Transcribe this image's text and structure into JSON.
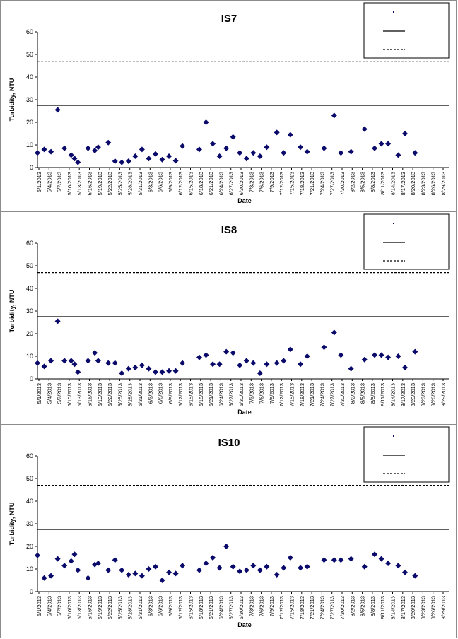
{
  "chart_data": [
    {
      "type": "scatter",
      "title": "IS7",
      "xlabel": "Date",
      "ylabel": "Turbidity, NTU",
      "ylim": [
        0,
        60
      ],
      "yticks": [
        0,
        10,
        20,
        30,
        40,
        50,
        60
      ],
      "xticks": [
        "5/1/2013",
        "5/4/2013",
        "5/7/2013",
        "5/10/2013",
        "5/13/2013",
        "5/16/2013",
        "5/19/2013",
        "5/22/2013",
        "5/25/2013",
        "5/28/2013",
        "5/31/2013",
        "6/3/2013",
        "6/6/2013",
        "6/9/2013",
        "6/12/2013",
        "6/15/2013",
        "6/18/2013",
        "6/21/2013",
        "6/24/2013",
        "6/27/2013",
        "6/30/2013",
        "7/3/2013",
        "7/6/2013",
        "7/9/2013",
        "7/12/2013",
        "7/15/2013",
        "7/18/2013",
        "7/21/2013",
        "7/24/2013",
        "7/27/2013",
        "7/30/2013",
        "8/2/2013",
        "8/5/2013",
        "8/8/2013",
        "8/11/2013",
        "8/14/2013",
        "8/17/2013",
        "8/20/2013",
        "8/23/2013",
        "8/26/2013",
        "8/29/2013"
      ],
      "xrange": [
        "2013-05-01",
        "2013-08-31"
      ],
      "legend_position": "top-right",
      "points": [
        [
          "2013-05-01",
          6.5
        ],
        [
          "2013-05-03",
          8
        ],
        [
          "2013-05-05",
          7
        ],
        [
          "2013-05-07",
          25.5
        ],
        [
          "2013-05-09",
          8.5
        ],
        [
          "2013-05-11",
          5.5
        ],
        [
          "2013-05-12",
          4
        ],
        [
          "2013-05-13",
          2.3
        ],
        [
          "2013-05-16",
          8.5
        ],
        [
          "2013-05-18",
          7.5
        ],
        [
          "2013-05-19",
          9
        ],
        [
          "2013-05-22",
          11
        ],
        [
          "2013-05-24",
          2.8
        ],
        [
          "2013-05-26",
          2.3
        ],
        [
          "2013-05-28",
          2.8
        ],
        [
          "2013-05-30",
          5
        ],
        [
          "2013-06-01",
          8
        ],
        [
          "2013-06-03",
          4
        ],
        [
          "2013-06-05",
          6
        ],
        [
          "2013-06-07",
          3.5
        ],
        [
          "2013-06-09",
          5
        ],
        [
          "2013-06-11",
          3
        ],
        [
          "2013-06-13",
          9.5
        ],
        [
          "2013-06-18",
          8
        ],
        [
          "2013-06-20",
          20
        ],
        [
          "2013-06-22",
          10.5
        ],
        [
          "2013-06-24",
          5
        ],
        [
          "2013-06-26",
          8.5
        ],
        [
          "2013-06-28",
          13.5
        ],
        [
          "2013-06-30",
          6.5
        ],
        [
          "2013-07-02",
          4
        ],
        [
          "2013-07-04",
          6.5
        ],
        [
          "2013-07-06",
          5
        ],
        [
          "2013-07-08",
          9
        ],
        [
          "2013-07-11",
          15.5
        ],
        [
          "2013-07-13",
          6.5
        ],
        [
          "2013-07-15",
          14.5
        ],
        [
          "2013-07-18",
          9
        ],
        [
          "2013-07-20",
          7
        ],
        [
          "2013-07-25",
          8.5
        ],
        [
          "2013-07-28",
          23
        ],
        [
          "2013-07-30",
          6.5
        ],
        [
          "2013-08-02",
          7
        ],
        [
          "2013-08-06",
          17
        ],
        [
          "2013-08-09",
          8.5
        ],
        [
          "2013-08-11",
          10.5
        ],
        [
          "2013-08-13",
          10.5
        ],
        [
          "2013-08-16",
          5.5
        ],
        [
          "2013-08-18",
          15
        ],
        [
          "2013-08-21",
          6.5
        ]
      ],
      "reference_lines": [
        {
          "value": 27.5,
          "style": "solid"
        },
        {
          "value": 47,
          "style": "dashed"
        }
      ]
    },
    {
      "type": "scatter",
      "title": "IS8",
      "xlabel": "Date",
      "ylabel": "Turbidity, NTU",
      "ylim": [
        0,
        60
      ],
      "yticks": [
        0,
        10,
        20,
        30,
        40,
        50,
        60
      ],
      "xticks": [
        "5/1/2013",
        "5/4/2013",
        "5/7/2013",
        "5/10/2013",
        "5/13/2013",
        "5/16/2013",
        "5/19/2013",
        "5/22/2013",
        "5/25/2013",
        "5/28/2013",
        "5/31/2013",
        "6/3/2013",
        "6/6/2013",
        "6/9/2013",
        "6/12/2013",
        "6/15/2013",
        "6/18/2013",
        "6/21/2013",
        "6/24/2013",
        "6/27/2013",
        "6/30/2013",
        "7/3/2013",
        "7/6/2013",
        "7/9/2013",
        "7/12/2013",
        "7/15/2013",
        "7/18/2013",
        "7/21/2013",
        "7/24/2013",
        "7/27/2013",
        "7/30/2013",
        "8/2/2013",
        "8/5/2013",
        "8/8/2013",
        "8/11/2013",
        "8/14/2013",
        "8/17/2013",
        "8/20/2013",
        "8/23/2013",
        "8/26/2013",
        "8/29/2013"
      ],
      "xrange": [
        "2013-05-01",
        "2013-08-31"
      ],
      "legend_position": "top-right",
      "points": [
        [
          "2013-05-01",
          7
        ],
        [
          "2013-05-03",
          5.5
        ],
        [
          "2013-05-05",
          8
        ],
        [
          "2013-05-07",
          25.5
        ],
        [
          "2013-05-09",
          8
        ],
        [
          "2013-05-11",
          8
        ],
        [
          "2013-05-12",
          6.5
        ],
        [
          "2013-05-13",
          3
        ],
        [
          "2013-05-16",
          8
        ],
        [
          "2013-05-18",
          11.5
        ],
        [
          "2013-05-19",
          8
        ],
        [
          "2013-05-22",
          7
        ],
        [
          "2013-05-24",
          7
        ],
        [
          "2013-05-26",
          2.5
        ],
        [
          "2013-05-28",
          4.5
        ],
        [
          "2013-05-30",
          5
        ],
        [
          "2013-06-01",
          6
        ],
        [
          "2013-06-03",
          4.5
        ],
        [
          "2013-06-05",
          3
        ],
        [
          "2013-06-07",
          3
        ],
        [
          "2013-06-09",
          3.5
        ],
        [
          "2013-06-11",
          3.5
        ],
        [
          "2013-06-13",
          7
        ],
        [
          "2013-06-18",
          9.5
        ],
        [
          "2013-06-20",
          10.5
        ],
        [
          "2013-06-22",
          6.5
        ],
        [
          "2013-06-24",
          6.5
        ],
        [
          "2013-06-26",
          12
        ],
        [
          "2013-06-28",
          11.5
        ],
        [
          "2013-06-30",
          6
        ],
        [
          "2013-07-02",
          8
        ],
        [
          "2013-07-04",
          7
        ],
        [
          "2013-07-06",
          2.5
        ],
        [
          "2013-07-08",
          6.5
        ],
        [
          "2013-07-11",
          7
        ],
        [
          "2013-07-13",
          8
        ],
        [
          "2013-07-15",
          13
        ],
        [
          "2013-07-18",
          6.5
        ],
        [
          "2013-07-20",
          10
        ],
        [
          "2013-07-25",
          14
        ],
        [
          "2013-07-28",
          20.5
        ],
        [
          "2013-07-30",
          10.5
        ],
        [
          "2013-08-02",
          4.5
        ],
        [
          "2013-08-06",
          8.5
        ],
        [
          "2013-08-09",
          10.5
        ],
        [
          "2013-08-11",
          10.5
        ],
        [
          "2013-08-13",
          9.5
        ],
        [
          "2013-08-16",
          10
        ],
        [
          "2013-08-18",
          5
        ],
        [
          "2013-08-21",
          12
        ]
      ],
      "reference_lines": [
        {
          "value": 27.5,
          "style": "solid"
        },
        {
          "value": 47,
          "style": "dashed"
        }
      ]
    },
    {
      "type": "scatter",
      "title": "IS10",
      "xlabel": "Date",
      "ylabel": "Turbidity, NTU",
      "ylim": [
        0,
        60
      ],
      "yticks": [
        0,
        10,
        20,
        30,
        40,
        50,
        60
      ],
      "xticks": [
        "5/1/2013",
        "5/4/2013",
        "5/7/2013",
        "5/10/2013",
        "5/13/2013",
        "5/16/2013",
        "5/19/2013",
        "5/22/2013",
        "5/25/2013",
        "5/28/2013",
        "5/31/2013",
        "6/3/2013",
        "6/6/2013",
        "6/9/2013",
        "6/12/2013",
        "6/15/2013",
        "6/18/2013",
        "6/21/2013",
        "6/24/2013",
        "6/27/2013",
        "6/30/2013",
        "7/3/2013",
        "7/6/2013",
        "7/9/2013",
        "7/12/2013",
        "7/15/2013",
        "7/18/2013",
        "7/21/2013",
        "7/24/2013",
        "7/27/2013",
        "7/30/2013",
        "8/2/2013",
        "8/5/2013",
        "8/8/2013",
        "8/11/2013",
        "8/14/2013",
        "8/17/2013",
        "8/20/2013",
        "8/23/2013",
        "8/26/2013",
        "8/29/2013"
      ],
      "xrange": [
        "2013-05-01",
        "2013-08-31"
      ],
      "legend_position": "top-right",
      "points": [
        [
          "2013-05-01",
          16
        ],
        [
          "2013-05-03",
          6
        ],
        [
          "2013-05-05",
          7
        ],
        [
          "2013-05-07",
          14.5
        ],
        [
          "2013-05-09",
          11.5
        ],
        [
          "2013-05-11",
          13.5
        ],
        [
          "2013-05-12",
          16.5
        ],
        [
          "2013-05-13",
          9.5
        ],
        [
          "2013-05-16",
          6
        ],
        [
          "2013-05-18",
          12
        ],
        [
          "2013-05-19",
          12.5
        ],
        [
          "2013-05-22",
          9.5
        ],
        [
          "2013-05-24",
          14
        ],
        [
          "2013-05-26",
          9.5
        ],
        [
          "2013-05-28",
          7.5
        ],
        [
          "2013-05-30",
          8
        ],
        [
          "2013-06-01",
          7
        ],
        [
          "2013-06-03",
          10
        ],
        [
          "2013-06-05",
          11
        ],
        [
          "2013-06-07",
          5
        ],
        [
          "2013-06-09",
          8.5
        ],
        [
          "2013-06-11",
          8
        ],
        [
          "2013-06-13",
          11.5
        ],
        [
          "2013-06-18",
          9.5
        ],
        [
          "2013-06-20",
          12.5
        ],
        [
          "2013-06-22",
          15
        ],
        [
          "2013-06-24",
          10.5
        ],
        [
          "2013-06-26",
          20
        ],
        [
          "2013-06-28",
          11
        ],
        [
          "2013-06-30",
          9
        ],
        [
          "2013-07-02",
          9.5
        ],
        [
          "2013-07-04",
          11.5
        ],
        [
          "2013-07-06",
          9.5
        ],
        [
          "2013-07-08",
          11
        ],
        [
          "2013-07-11",
          7.5
        ],
        [
          "2013-07-13",
          10.5
        ],
        [
          "2013-07-15",
          15
        ],
        [
          "2013-07-18",
          10.5
        ],
        [
          "2013-07-20",
          11
        ],
        [
          "2013-07-25",
          14
        ],
        [
          "2013-07-28",
          14
        ],
        [
          "2013-07-30",
          14
        ],
        [
          "2013-08-02",
          14.5
        ],
        [
          "2013-08-06",
          11
        ],
        [
          "2013-08-09",
          16.5
        ],
        [
          "2013-08-11",
          14.5
        ],
        [
          "2013-08-13",
          12.5
        ],
        [
          "2013-08-16",
          11.5
        ],
        [
          "2013-08-18",
          8.5
        ],
        [
          "2013-08-21",
          7
        ]
      ],
      "reference_lines": [
        {
          "value": 27.5,
          "style": "solid"
        },
        {
          "value": 47,
          "style": "dashed"
        }
      ]
    }
  ],
  "colors": {
    "marker": "#0a0a6b",
    "reference_line": "#000000",
    "frame": "#8c8c8c"
  }
}
